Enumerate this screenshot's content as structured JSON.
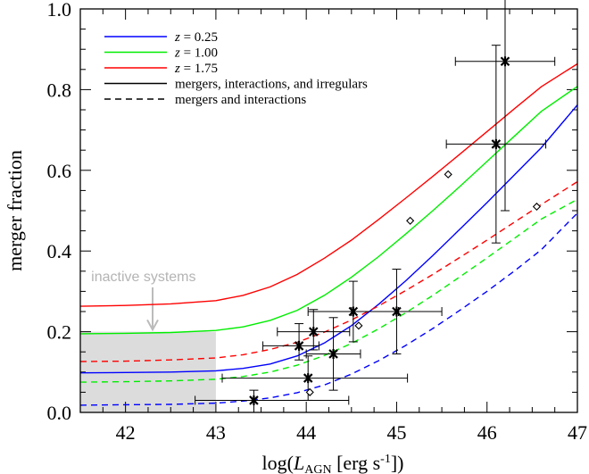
{
  "chart_data": {
    "type": "line",
    "xlabel_prefix": "log(",
    "xlabel_L": "L",
    "xlabel_sub": "AGN",
    "xlabel_units": " [erg s",
    "xlabel_sup": "-1",
    "xlabel_close": "])",
    "ylabel": "merger fraction",
    "xlim": [
      41.5,
      47
    ],
    "ylim": [
      0,
      1.0
    ],
    "xticks": [
      42,
      43,
      44,
      45,
      46,
      47
    ],
    "yticks": [
      0.0,
      0.2,
      0.4,
      0.6,
      0.8,
      1.0
    ],
    "ytick_labels": [
      "0.0",
      "0.2",
      "0.4",
      "0.6",
      "0.8",
      "1.0"
    ],
    "colors": {
      "z025": "#0000ff",
      "z100": "#00ee00",
      "z175": "#ff0000",
      "points": "#000000",
      "inactive": "#dcdcdc",
      "inactive_text": "#b4b4b4"
    },
    "legend": [
      {
        "z_var": "z",
        "label": " = 0.25",
        "color": "#0000ff",
        "dash": false
      },
      {
        "z_var": "z",
        "label": " = 1.00",
        "color": "#00ee00",
        "dash": false
      },
      {
        "z_var": "z",
        "label": " = 1.75",
        "color": "#ff0000",
        "dash": false
      },
      {
        "z_var": "",
        "label": "mergers, interactions, and irregulars",
        "color": "#000000",
        "dash": false
      },
      {
        "z_var": "",
        "label": "mergers and interactions",
        "color": "#000000",
        "dash": true
      }
    ],
    "series": [
      {
        "name": "z = 0.25",
        "style": "solid",
        "color": "#0000ff",
        "x": [
          41.5,
          42,
          42.5,
          43,
          43.3,
          43.6,
          43.9,
          44.2,
          44.5,
          44.8,
          45.1,
          45.4,
          45.7,
          46,
          46.3,
          46.6,
          47
        ],
        "y": [
          0.098,
          0.099,
          0.1,
          0.103,
          0.109,
          0.12,
          0.14,
          0.172,
          0.215,
          0.268,
          0.326,
          0.389,
          0.454,
          0.52,
          0.588,
          0.656,
          0.762
        ]
      },
      {
        "name": "z = 1.00",
        "style": "solid",
        "color": "#00ee00",
        "x": [
          41.5,
          42,
          42.5,
          43,
          43.3,
          43.6,
          43.9,
          44.2,
          44.5,
          44.8,
          45.1,
          45.4,
          45.7,
          46,
          46.3,
          46.6,
          47
        ],
        "y": [
          0.195,
          0.196,
          0.198,
          0.203,
          0.212,
          0.228,
          0.253,
          0.29,
          0.335,
          0.386,
          0.442,
          0.5,
          0.56,
          0.622,
          0.684,
          0.746,
          0.808
        ]
      },
      {
        "name": "z = 1.75",
        "style": "solid",
        "color": "#ff0000",
        "x": [
          41.5,
          42,
          42.5,
          43,
          43.3,
          43.6,
          43.9,
          44.2,
          44.5,
          44.8,
          45.1,
          45.4,
          45.7,
          46,
          46.3,
          46.6,
          47
        ],
        "y": [
          0.263,
          0.265,
          0.269,
          0.277,
          0.29,
          0.311,
          0.342,
          0.382,
          0.427,
          0.478,
          0.531,
          0.585,
          0.64,
          0.696,
          0.752,
          0.807,
          0.864
        ]
      },
      {
        "name": "z = 0.25 (mergers and interactions)",
        "style": "dashed",
        "color": "#0000ff",
        "x": [
          41.5,
          42,
          42.5,
          43,
          43.3,
          43.6,
          43.9,
          44.2,
          44.5,
          44.8,
          45.1,
          45.4,
          45.7,
          46,
          46.3,
          46.6,
          47
        ],
        "y": [
          0.018,
          0.019,
          0.02,
          0.023,
          0.028,
          0.036,
          0.049,
          0.068,
          0.095,
          0.128,
          0.166,
          0.208,
          0.253,
          0.3,
          0.35,
          0.403,
          0.494
        ]
      },
      {
        "name": "z = 1.00 (mergers and interactions)",
        "style": "dashed",
        "color": "#00ee00",
        "x": [
          41.5,
          42,
          42.5,
          43,
          43.3,
          43.6,
          43.9,
          44.2,
          44.5,
          44.8,
          45.1,
          45.4,
          45.7,
          46,
          46.3,
          46.6,
          47
        ],
        "y": [
          0.075,
          0.076,
          0.078,
          0.082,
          0.089,
          0.1,
          0.117,
          0.141,
          0.171,
          0.207,
          0.247,
          0.29,
          0.336,
          0.383,
          0.431,
          0.479,
          0.528
        ]
      },
      {
        "name": "z = 1.75 (mergers and interactions)",
        "style": "dashed",
        "color": "#ff0000",
        "x": [
          41.5,
          42,
          42.5,
          43,
          43.3,
          43.6,
          43.9,
          44.2,
          44.5,
          44.8,
          45.1,
          45.4,
          45.7,
          46,
          46.3,
          46.6,
          47
        ],
        "y": [
          0.126,
          0.127,
          0.13,
          0.135,
          0.143,
          0.156,
          0.174,
          0.199,
          0.229,
          0.264,
          0.302,
          0.342,
          0.384,
          0.427,
          0.471,
          0.515,
          0.572
        ]
      }
    ],
    "points_star": [
      {
        "x": 43.42,
        "y": 0.03,
        "xerr": [
          0.65,
          1.05
        ],
        "yerr": [
          0.03,
          0.025
        ]
      },
      {
        "x": 43.92,
        "y": 0.165,
        "xerr": [
          0.4,
          0.22
        ],
        "yerr": [
          0.035,
          0.055
        ]
      },
      {
        "x": 44.02,
        "y": 0.085,
        "xerr": [
          0.95,
          1.1
        ],
        "yerr": [
          0.055,
          0.055
        ]
      },
      {
        "x": 44.08,
        "y": 0.2,
        "xerr": [
          0.4,
          0.4
        ],
        "yerr": [
          0.045,
          0.055
        ]
      },
      {
        "x": 44.3,
        "y": 0.145,
        "xerr": [
          0.3,
          0.3
        ],
        "yerr": [
          0.09,
          0.09
        ]
      },
      {
        "x": 44.52,
        "y": 0.25,
        "xerr": [
          0.5,
          0.5
        ],
        "yerr": [
          0.075,
          0.075
        ]
      },
      {
        "x": 45.0,
        "y": 0.25,
        "xerr": [
          0.5,
          0.5
        ],
        "yerr": [
          0.105,
          0.105
        ]
      },
      {
        "x": 46.1,
        "y": 0.665,
        "xerr": [
          0.55,
          0.55
        ],
        "yerr": [
          0.245,
          0.245
        ]
      },
      {
        "x": 46.2,
        "y": 0.87,
        "xerr": [
          0.55,
          0.55
        ],
        "yerr": [
          0.37,
          0.37
        ]
      }
    ],
    "points_diamond": [
      {
        "x": 44.04,
        "y": 0.05
      },
      {
        "x": 44.58,
        "y": 0.215
      },
      {
        "x": 45.15,
        "y": 0.475
      },
      {
        "x": 45.57,
        "y": 0.59
      },
      {
        "x": 46.55,
        "y": 0.51
      }
    ],
    "inactive_region": {
      "x": [
        41.5,
        43.0
      ],
      "y": [
        0.0,
        0.2
      ]
    },
    "annotation": {
      "text": "inactive systems",
      "x": 41.62,
      "y": 0.325,
      "arrow_x": 42.3,
      "arrow_from": 0.31,
      "arrow_to": 0.205
    }
  }
}
